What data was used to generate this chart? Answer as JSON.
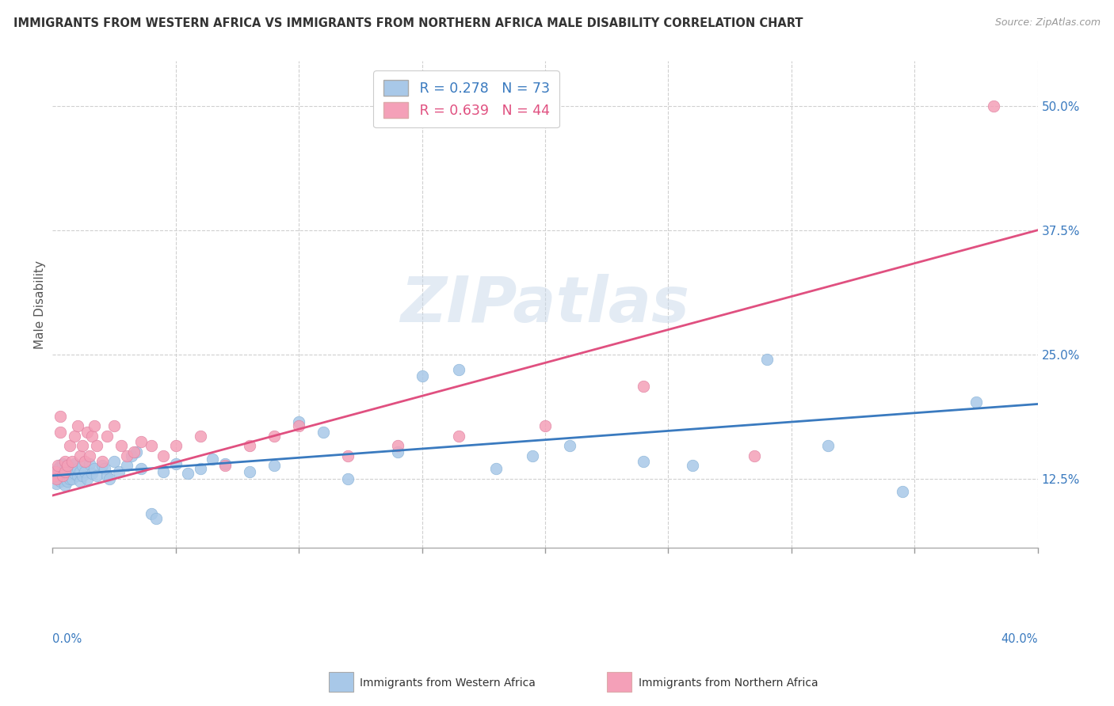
{
  "title": "IMMIGRANTS FROM WESTERN AFRICA VS IMMIGRANTS FROM NORTHERN AFRICA MALE DISABILITY CORRELATION CHART",
  "source": "Source: ZipAtlas.com",
  "ylabel": "Male Disability",
  "y_tick_labels": [
    "12.5%",
    "25.0%",
    "37.5%",
    "50.0%"
  ],
  "y_tick_values": [
    0.125,
    0.25,
    0.375,
    0.5
  ],
  "x_min": 0.0,
  "x_max": 0.4,
  "y_min": 0.055,
  "y_max": 0.545,
  "blue_R": 0.278,
  "blue_N": 73,
  "pink_R": 0.639,
  "pink_N": 44,
  "blue_color": "#a8c8e8",
  "pink_color": "#f4a0b8",
  "blue_line_color": "#3a7abf",
  "pink_line_color": "#e05080",
  "legend_label_blue": "Immigrants from Western Africa",
  "legend_label_pink": "Immigrants from Northern Africa",
  "watermark": "ZIPatlas",
  "background_color": "#ffffff",
  "blue_scatter_x": [
    0.0008,
    0.001,
    0.0015,
    0.002,
    0.002,
    0.0025,
    0.003,
    0.003,
    0.003,
    0.0035,
    0.004,
    0.004,
    0.0045,
    0.005,
    0.005,
    0.005,
    0.006,
    0.006,
    0.0065,
    0.007,
    0.007,
    0.0075,
    0.008,
    0.008,
    0.009,
    0.009,
    0.01,
    0.01,
    0.011,
    0.011,
    0.012,
    0.012,
    0.013,
    0.014,
    0.015,
    0.016,
    0.017,
    0.018,
    0.02,
    0.021,
    0.022,
    0.023,
    0.025,
    0.027,
    0.03,
    0.032,
    0.034,
    0.036,
    0.04,
    0.042,
    0.045,
    0.05,
    0.055,
    0.06,
    0.065,
    0.07,
    0.08,
    0.09,
    0.1,
    0.11,
    0.12,
    0.14,
    0.15,
    0.165,
    0.18,
    0.195,
    0.21,
    0.24,
    0.26,
    0.29,
    0.315,
    0.345,
    0.375
  ],
  "blue_scatter_y": [
    0.128,
    0.132,
    0.12,
    0.125,
    0.135,
    0.128,
    0.122,
    0.13,
    0.138,
    0.125,
    0.13,
    0.14,
    0.125,
    0.118,
    0.128,
    0.135,
    0.122,
    0.132,
    0.128,
    0.125,
    0.135,
    0.13,
    0.125,
    0.138,
    0.13,
    0.14,
    0.128,
    0.135,
    0.122,
    0.132,
    0.138,
    0.128,
    0.132,
    0.125,
    0.14,
    0.13,
    0.135,
    0.128,
    0.138,
    0.135,
    0.128,
    0.125,
    0.142,
    0.132,
    0.138,
    0.148,
    0.152,
    0.135,
    0.09,
    0.085,
    0.132,
    0.14,
    0.13,
    0.135,
    0.145,
    0.14,
    0.132,
    0.138,
    0.182,
    0.172,
    0.125,
    0.152,
    0.228,
    0.235,
    0.135,
    0.148,
    0.158,
    0.142,
    0.138,
    0.245,
    0.158,
    0.112,
    0.202
  ],
  "pink_scatter_x": [
    0.0008,
    0.001,
    0.0015,
    0.002,
    0.003,
    0.003,
    0.004,
    0.005,
    0.005,
    0.006,
    0.007,
    0.008,
    0.009,
    0.01,
    0.011,
    0.012,
    0.013,
    0.014,
    0.015,
    0.016,
    0.017,
    0.018,
    0.02,
    0.022,
    0.025,
    0.028,
    0.03,
    0.033,
    0.036,
    0.04,
    0.045,
    0.05,
    0.06,
    0.07,
    0.08,
    0.09,
    0.1,
    0.12,
    0.14,
    0.165,
    0.2,
    0.24,
    0.285,
    0.382
  ],
  "pink_scatter_y": [
    0.128,
    0.132,
    0.125,
    0.138,
    0.188,
    0.172,
    0.128,
    0.132,
    0.142,
    0.138,
    0.158,
    0.142,
    0.168,
    0.178,
    0.148,
    0.158,
    0.142,
    0.172,
    0.148,
    0.168,
    0.178,
    0.158,
    0.142,
    0.168,
    0.178,
    0.158,
    0.148,
    0.152,
    0.162,
    0.158,
    0.148,
    0.158,
    0.168,
    0.138,
    0.158,
    0.168,
    0.178,
    0.148,
    0.158,
    0.168,
    0.178,
    0.218,
    0.148,
    0.5
  ],
  "blue_line_x0": 0.0,
  "blue_line_x1": 0.4,
  "blue_line_y0": 0.128,
  "blue_line_y1": 0.2,
  "pink_line_x0": 0.0,
  "pink_line_x1": 0.4,
  "pink_line_y0": 0.108,
  "pink_line_y1": 0.375,
  "grid_x_ticks": [
    0.05,
    0.1,
    0.15,
    0.2,
    0.25,
    0.3,
    0.35,
    0.4
  ],
  "x_tick_positions": [
    0.0,
    0.05,
    0.1,
    0.15,
    0.2,
    0.25,
    0.3,
    0.35,
    0.4
  ]
}
